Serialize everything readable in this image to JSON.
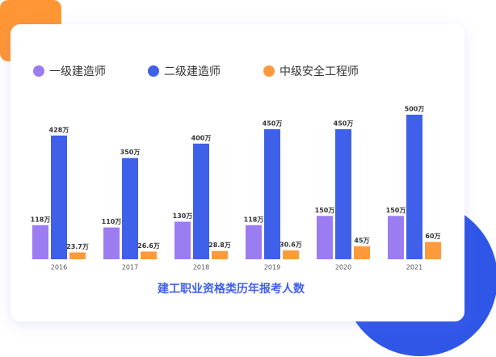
{
  "chart_data": {
    "type": "bar",
    "title": "建工职业资格类历年报考人数",
    "categories": [
      "2016",
      "2017",
      "2018",
      "2019",
      "2020",
      "2021"
    ],
    "series": [
      {
        "name": "一级建造师",
        "color": "#9b7cf1",
        "values": [
          118,
          110,
          130,
          118,
          150,
          150
        ],
        "value_labels": [
          "118万",
          "110万",
          "130万",
          "118万",
          "150万",
          "150万"
        ]
      },
      {
        "name": "二级建造师",
        "color": "#3f60e8",
        "values": [
          428,
          350,
          400,
          450,
          450,
          500
        ],
        "value_labels": [
          "428万",
          "350万",
          "400万",
          "450万",
          "450万",
          "500万"
        ]
      },
      {
        "name": "中级安全工程师",
        "color": "#ff9a3c",
        "values": [
          23.7,
          26.6,
          28.8,
          30.6,
          45,
          60
        ],
        "value_labels": [
          "23.7万",
          "26.6万",
          "28.8万",
          "30.6万",
          "45万",
          "60万"
        ]
      }
    ]
  }
}
